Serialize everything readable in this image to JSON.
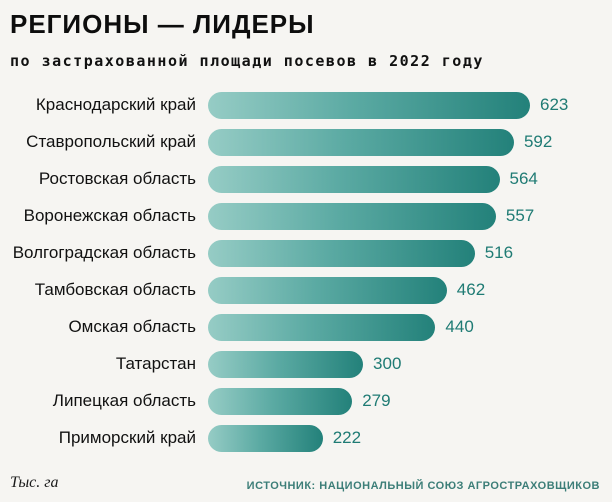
{
  "header": {
    "title": "РЕГИОНЫ — ЛИДЕРЫ",
    "subtitle": "по застрахованной площади посевов в 2022 году"
  },
  "footer": {
    "unit": "Тыс. га",
    "source": "ИСТОЧНИК: НАЦИОНАЛЬНЫЙ СОЮЗ АГРОСТРАХОВЩИКОВ"
  },
  "chart_data": {
    "type": "bar",
    "orientation": "horizontal",
    "title": "РЕГИОНЫ — ЛИДЕРЫ",
    "subtitle": "по застрахованной площади посевов в 2022 году",
    "unit_label": "Тыс. га",
    "source": "ИСТОЧНИК: НАЦИОНАЛЬНЫЙ СОЮЗ АГРОСТРАХОВЩИКОВ",
    "categories": [
      "Краснодарский край",
      "Ставропольский край",
      "Ростовская область",
      "Воронежская область",
      "Волгоградская область",
      "Тамбовская область",
      "Омская область",
      "Татарстан",
      "Липецкая область",
      "Приморский край"
    ],
    "values": [
      623,
      592,
      564,
      557,
      516,
      462,
      440,
      300,
      279,
      222
    ],
    "xlim": [
      0,
      623
    ],
    "grid": false,
    "legend": false,
    "colors": {
      "bar_gradient_start": "#96ccc5",
      "bar_gradient_end": "#23817a",
      "value_text": "#1f7b74",
      "background": "#f6f5f2"
    }
  }
}
